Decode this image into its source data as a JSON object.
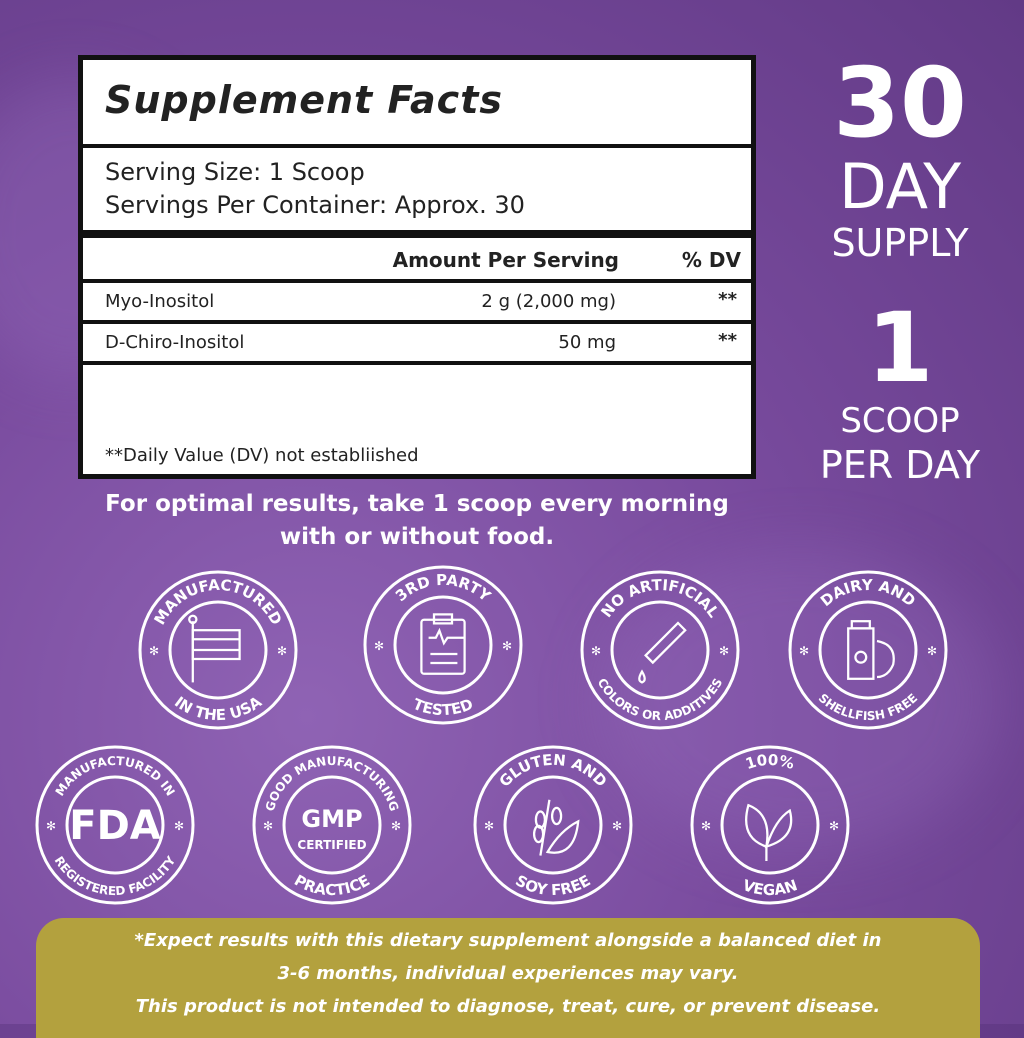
{
  "facts": {
    "title": "Supplement Facts",
    "serving_size": "Serving Size: 1 Scoop",
    "servings_per_container": "Servings Per Container: Approx. 30",
    "col_amount": "Amount Per Serving",
    "col_dv": "% DV",
    "rows": [
      {
        "name": "Myo-Inositol",
        "amount": "2 g (2,000 mg)",
        "dv": "**"
      },
      {
        "name": "D-Chiro-Inositol",
        "amount": "50 mg",
        "dv": "**"
      }
    ],
    "footnote": "**Daily Value (DV)  not establiished"
  },
  "directions": [
    "For optimal results, take 1 scoop every morning",
    "with or without food."
  ],
  "supply": {
    "number": "30",
    "day": "DAY",
    "supply": "SUPPLY",
    "scoops": "1",
    "scoop": "SCOOP",
    "per_day": "PER DAY"
  },
  "badges": [
    {
      "top": "MANUFACTURED",
      "bottom": "IN THE USA",
      "icon": "us-flag-icon"
    },
    {
      "top": "3RD PARTY",
      "bottom": "TESTED",
      "icon": "clipboard-icon"
    },
    {
      "top": "NO ARTIFICIAL",
      "bottom": "COLORS OR ADDITIVES",
      "icon": "dropper-icon"
    },
    {
      "top": "DAIRY AND",
      "bottom": "SHELLFISH FREE",
      "icon": "milk-carton-shrimp-icon"
    },
    {
      "top": "MANUFACTURED IN",
      "bottom": "REGISTERED FACILITY",
      "icon": "fda-icon",
      "center": "FDA"
    },
    {
      "top": "GOOD MANUFACTURING",
      "bottom": "PRACTICE",
      "icon": "gmp-icon",
      "center": "GMP",
      "center2": "CERTIFIED"
    },
    {
      "top": "GLUTEN AND",
      "bottom": "SOY FREE",
      "icon": "wheat-soy-icon"
    },
    {
      "top": "100%",
      "bottom": "VEGAN",
      "icon": "leaf-icon"
    }
  ],
  "disclaimer": [
    "*Expect results with this dietary supplement alongside a balanced diet in",
    "3-6 months, individual experiences may vary.",
    "This product is not intended to  diagnose, treat, cure, or prevent disease."
  ],
  "colors": {
    "background": "#7a4c9f",
    "gold": "#b3a13e"
  }
}
